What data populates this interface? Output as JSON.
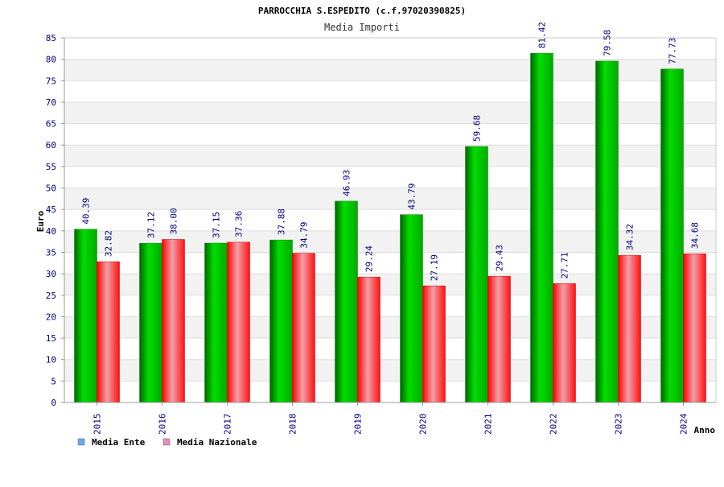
{
  "chart_data": {
    "type": "bar",
    "title": "PARROCCHIA S.ESPEDITO (c.f.97020390825)",
    "subtitle": "Media Importi",
    "xlabel": "Anno",
    "ylabel": "Euro",
    "ylim": [
      0,
      85
    ],
    "ytick_step": 5,
    "grid": true,
    "legend_position": "bottom-left",
    "categories": [
      "2015",
      "2016",
      "2017",
      "2018",
      "2019",
      "2020",
      "2021",
      "2022",
      "2023",
      "2024"
    ],
    "series": [
      {
        "name": "Media Ente",
        "values": [
          40.39,
          37.12,
          37.15,
          37.88,
          46.93,
          43.79,
          59.68,
          81.42,
          79.58,
          77.73
        ],
        "labels": [
          "40.39",
          "37.12",
          "37.15",
          "37.88",
          "46.93",
          "43.79",
          "59.68",
          "81.42",
          "79.58",
          "77.73"
        ],
        "color": "#00cc00",
        "legend_color": "#66aaee"
      },
      {
        "name": "Media Nazionale",
        "values": [
          32.82,
          38.0,
          37.36,
          34.79,
          29.24,
          27.19,
          29.43,
          27.71,
          34.32,
          34.68
        ],
        "labels": [
          "32.82",
          "38.00",
          "37.36",
          "34.79",
          "29.24",
          "27.19",
          "29.43",
          "27.71",
          "34.32",
          "34.68"
        ],
        "color": "#ff1111",
        "legend_color": "#ee88bb"
      }
    ]
  }
}
